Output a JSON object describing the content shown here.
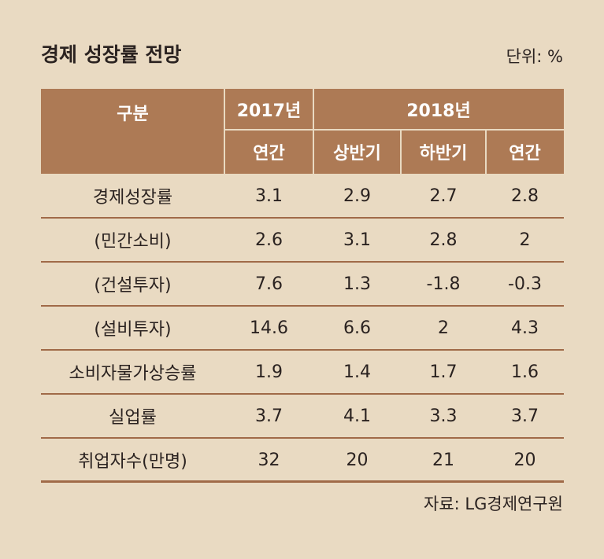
{
  "header": {
    "title": "경제 성장률 전망",
    "unit": "단위: %"
  },
  "table": {
    "head": [
      [
        "구분",
        "2017년",
        "2018년"
      ],
      [
        "연간",
        "상반기",
        "하반기",
        "연간"
      ]
    ],
    "rows": [
      [
        "경제성장률",
        "3.1",
        "2.9",
        "2.7",
        "2.8"
      ],
      [
        "(민간소비)",
        "2.6",
        "3.1",
        "2.8",
        "2"
      ],
      [
        "(건설투자)",
        "7.6",
        "1.3",
        "-1.8",
        "-0.3"
      ],
      [
        "(설비투자)",
        "14.6",
        "6.6",
        "2",
        "4.3"
      ],
      [
        "소비자물가상승률",
        "1.9",
        "1.4",
        "1.7",
        "1.6"
      ],
      [
        "실업률",
        "3.7",
        "4.1",
        "3.3",
        "3.7"
      ],
      [
        "취업자수(만명)",
        "32",
        "20",
        "21",
        "20"
      ]
    ]
  },
  "source": "자료: LG경제연구원"
}
